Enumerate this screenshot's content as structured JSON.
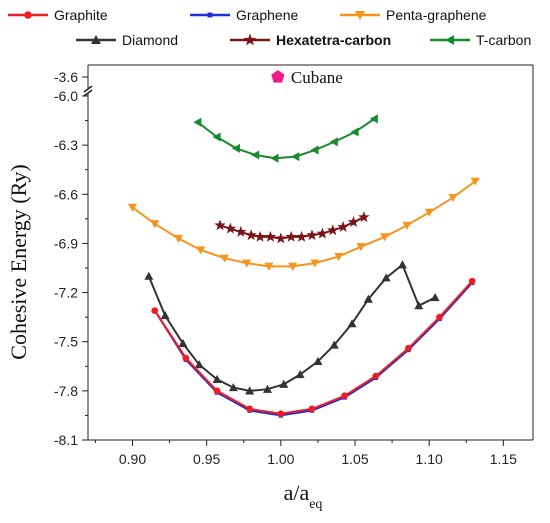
{
  "chart_data": {
    "type": "line",
    "xlabel": "a/a",
    "xlabel_sub": "eq",
    "ylabel": "Cohesive Energy (Ry)",
    "xlim": [
      0.87,
      1.17
    ],
    "xticks": [
      0.9,
      0.95,
      1.0,
      1.05,
      1.1,
      1.15
    ],
    "xtick_labels": [
      "0.90",
      "0.95",
      "1.00",
      "1.05",
      "1.10",
      "1.15"
    ],
    "ylim": [
      -8.1,
      -5.95
    ],
    "yticks": [
      -8.1,
      -7.8,
      -7.5,
      -7.2,
      -6.9,
      -6.6,
      -6.3,
      -6.0
    ],
    "ytick_labels": [
      "-8.1",
      "-7.8",
      "-7.5",
      "-7.2",
      "-6.9",
      "-6.6",
      "-6.3",
      "-6.0"
    ],
    "axis_break": "-6.0 to -3.6",
    "upper_tick_label": "-3.6",
    "grid": false,
    "legend_position": "top",
    "series": [
      {
        "name": "Graphite",
        "color": "#ee1c25",
        "marker": "circle",
        "x": [
          0.915,
          0.936,
          0.957,
          0.979,
          1.0,
          1.021,
          1.043,
          1.064,
          1.086,
          1.107,
          1.129
        ],
        "y": [
          -7.31,
          -7.6,
          -7.8,
          -7.91,
          -7.94,
          -7.91,
          -7.83,
          -7.71,
          -7.54,
          -7.35,
          -7.13
        ]
      },
      {
        "name": "Graphene",
        "color": "#1f2fd6",
        "marker": "square",
        "x": [
          0.915,
          0.936,
          0.957,
          0.979,
          1.0,
          1.021,
          1.043,
          1.064,
          1.086,
          1.107,
          1.129
        ],
        "y": [
          -7.31,
          -7.61,
          -7.81,
          -7.92,
          -7.95,
          -7.92,
          -7.84,
          -7.72,
          -7.55,
          -7.36,
          -7.14
        ]
      },
      {
        "name": "Penta-graphene",
        "color": "#f7941d",
        "marker": "triangle-down",
        "x": [
          0.9,
          0.915,
          0.931,
          0.946,
          0.962,
          0.977,
          0.992,
          1.008,
          1.023,
          1.039,
          1.054,
          1.07,
          1.085,
          1.1,
          1.116,
          1.131
        ],
        "y": [
          -6.68,
          -6.78,
          -6.87,
          -6.94,
          -6.99,
          -7.02,
          -7.04,
          -7.04,
          -7.02,
          -6.98,
          -6.92,
          -6.86,
          -6.79,
          -6.71,
          -6.62,
          -6.52
        ]
      },
      {
        "name": "Diamond",
        "color": "#333333",
        "marker": "triangle-up",
        "x": [
          0.911,
          0.922,
          0.934,
          0.945,
          0.957,
          0.968,
          0.979,
          0.991,
          1.002,
          1.013,
          1.025,
          1.036,
          1.048,
          1.059,
          1.071,
          1.082,
          1.093,
          1.104
        ],
        "y": [
          -7.1,
          -7.34,
          -7.51,
          -7.64,
          -7.73,
          -7.78,
          -7.8,
          -7.79,
          -7.76,
          -7.7,
          -7.62,
          -7.52,
          -7.39,
          -7.24,
          -7.11,
          -7.03,
          -7.28,
          -7.23
        ]
      },
      {
        "name": "Hexatetra-carbon",
        "color": "#7b1416",
        "marker": "star",
        "x": [
          0.959,
          0.966,
          0.973,
          0.98,
          0.986,
          0.993,
          1.0,
          1.007,
          1.014,
          1.021,
          1.028,
          1.035,
          1.042,
          1.049,
          1.056
        ],
        "y": [
          -6.79,
          -6.81,
          -6.83,
          -6.85,
          -6.86,
          -6.86,
          -6.87,
          -6.86,
          -6.86,
          -6.85,
          -6.84,
          -6.82,
          -6.8,
          -6.77,
          -6.74
        ]
      },
      {
        "name": "T-carbon",
        "color": "#1a8a2e",
        "marker": "triangle-left",
        "x": [
          0.944,
          0.957,
          0.97,
          0.983,
          0.996,
          1.01,
          1.023,
          1.036,
          1.05,
          1.063
        ],
        "y": [
          -6.16,
          -6.25,
          -6.32,
          -6.36,
          -6.38,
          -6.37,
          -6.33,
          -6.28,
          -6.22,
          -6.14
        ]
      }
    ],
    "annotations": [
      {
        "text": "Cubane",
        "color": "#ee1c8a",
        "marker": "pentagon",
        "x": 0.998,
        "y_label": "-3.6"
      }
    ]
  }
}
